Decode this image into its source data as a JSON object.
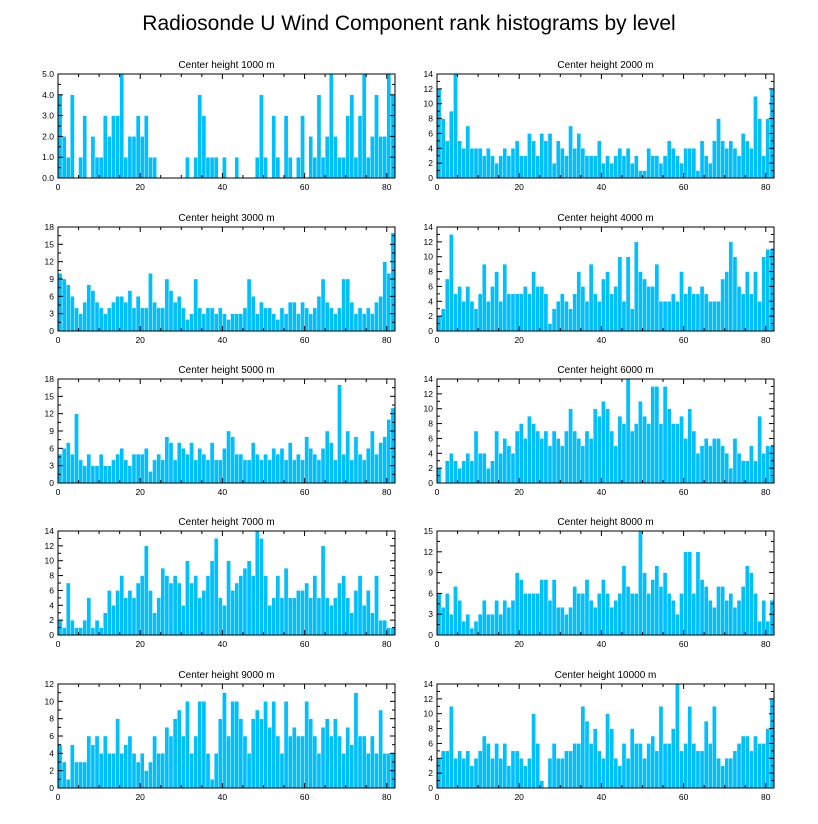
{
  "title": "Radiosonde U Wind Component rank histograms by level",
  "bar_color": "#00bfff",
  "chart_data": [
    {
      "type": "bar",
      "title": "Center height 1000 m",
      "xlim": [
        0,
        82
      ],
      "ylim": [
        0,
        5
      ],
      "x_ticks": [
        0,
        20,
        40,
        60,
        80
      ],
      "y_ticks": [
        0,
        1,
        2,
        3,
        4,
        5
      ],
      "y_tick_labels": [
        "0.0",
        "1.0",
        "2.0",
        "3.0",
        "4.0",
        "5.0"
      ],
      "values": [
        4,
        2,
        1,
        4,
        0,
        1,
        3,
        0,
        2,
        1,
        1,
        3,
        2,
        3,
        3,
        5,
        1,
        2,
        2,
        3,
        2,
        3,
        1,
        1,
        0,
        0,
        0,
        0,
        0,
        0,
        0,
        1,
        0,
        1,
        4,
        3,
        1,
        1,
        1,
        0,
        1,
        0,
        0,
        1,
        0,
        0,
        0,
        0,
        1,
        4,
        1,
        0,
        3,
        1,
        0,
        3,
        1,
        0,
        1,
        3,
        0,
        2,
        1,
        4,
        1,
        2,
        5,
        2,
        1,
        1,
        3,
        4,
        1,
        3,
        5,
        1,
        2,
        4,
        2,
        2,
        5,
        4
      ]
    },
    {
      "type": "bar",
      "title": "Center height 2000 m",
      "xlim": [
        0,
        82
      ],
      "ylim": [
        0,
        14
      ],
      "x_ticks": [
        0,
        20,
        40,
        60,
        80
      ],
      "y_ticks": [
        0,
        2,
        4,
        6,
        8,
        10,
        12,
        14
      ],
      "y_tick_labels": [
        "0",
        "2",
        "4",
        "6",
        "8",
        "10",
        "12",
        "14"
      ],
      "values": [
        12,
        8,
        5,
        9,
        14,
        5,
        4,
        7,
        4,
        4,
        4,
        3,
        4,
        3,
        2,
        3,
        4,
        3,
        4,
        5,
        3,
        3,
        6,
        5,
        3,
        6,
        5,
        6,
        2,
        5,
        4,
        3,
        7,
        4,
        6,
        4,
        3,
        3,
        3,
        5,
        2,
        3,
        2,
        3,
        4,
        3,
        4,
        2,
        3,
        1,
        1,
        4,
        3,
        3,
        2,
        3,
        5,
        4,
        3,
        2,
        4,
        4,
        4,
        1,
        5,
        3,
        2,
        5,
        8,
        5,
        4,
        5,
        4,
        3,
        6,
        5,
        4,
        11,
        8,
        3,
        8,
        12
      ]
    },
    {
      "type": "bar",
      "title": "Center height 3000 m",
      "xlim": [
        0,
        82
      ],
      "ylim": [
        0,
        18
      ],
      "x_ticks": [
        0,
        20,
        40,
        60,
        80
      ],
      "y_ticks": [
        0,
        3,
        6,
        9,
        12,
        15,
        18
      ],
      "y_tick_labels": [
        "0",
        "3",
        "6",
        "9",
        "12",
        "15",
        "18"
      ],
      "values": [
        10,
        9,
        8,
        6,
        4,
        3,
        5,
        8,
        7,
        5,
        4,
        3,
        4,
        5,
        6,
        6,
        5,
        7,
        4,
        6,
        4,
        4,
        10,
        5,
        4,
        4,
        9,
        7,
        5,
        6,
        4,
        2,
        3,
        9,
        4,
        3,
        4,
        4,
        3,
        4,
        3,
        2,
        3,
        3,
        3,
        4,
        9,
        6,
        3,
        5,
        4,
        4,
        3,
        2,
        4,
        3,
        5,
        5,
        3,
        5,
        4,
        3,
        4,
        6,
        9,
        5,
        4,
        3,
        4,
        9,
        9,
        5,
        3,
        4,
        3,
        4,
        3,
        5,
        6,
        12,
        10,
        17
      ]
    },
    {
      "type": "bar",
      "title": "Center height 4000 m",
      "xlim": [
        0,
        82
      ],
      "ylim": [
        0,
        14
      ],
      "x_ticks": [
        0,
        20,
        40,
        60,
        80
      ],
      "y_ticks": [
        0,
        2,
        4,
        6,
        8,
        10,
        12,
        14
      ],
      "y_tick_labels": [
        "0",
        "2",
        "4",
        "6",
        "8",
        "10",
        "12",
        "14"
      ],
      "values": [
        2,
        3,
        7,
        13,
        5,
        6,
        4,
        6,
        4,
        3,
        5,
        9,
        4,
        6,
        8,
        4,
        9,
        5,
        5,
        5,
        5,
        6,
        5,
        8,
        6,
        6,
        5,
        1,
        3,
        4,
        5,
        4,
        3,
        5,
        8,
        6,
        4,
        9,
        5,
        4,
        7,
        8,
        5,
        6,
        10,
        4,
        10,
        3,
        12,
        8,
        7,
        6,
        6,
        9,
        4,
        4,
        4,
        5,
        4,
        8,
        5,
        6,
        5,
        5,
        6,
        5,
        4,
        4,
        4,
        7,
        8,
        12,
        10,
        6,
        5,
        8,
        5,
        8,
        4,
        10,
        11,
        11
      ]
    },
    {
      "type": "bar",
      "title": "Center height 5000 m",
      "xlim": [
        0,
        82
      ],
      "ylim": [
        0,
        18
      ],
      "x_ticks": [
        0,
        20,
        40,
        60,
        80
      ],
      "y_ticks": [
        0,
        3,
        6,
        9,
        12,
        15,
        18
      ],
      "y_tick_labels": [
        "0",
        "3",
        "6",
        "9",
        "12",
        "15",
        "18"
      ],
      "values": [
        5,
        6,
        7,
        5,
        12,
        4,
        3,
        5,
        3,
        3,
        5,
        3,
        3,
        4,
        5,
        6,
        4,
        3,
        5,
        5,
        5,
        6,
        2,
        4,
        5,
        4,
        8,
        7,
        4,
        7,
        6,
        5,
        7,
        4,
        6,
        5,
        4,
        7,
        4,
        4,
        6,
        9,
        8,
        5,
        5,
        4,
        4,
        7,
        5,
        4,
        5,
        4,
        6,
        5,
        6,
        4,
        7,
        4,
        5,
        4,
        8,
        6,
        5,
        4,
        6,
        9,
        7,
        4,
        17,
        5,
        9,
        4,
        8,
        5,
        4,
        6,
        9,
        5,
        7,
        8,
        11,
        13
      ]
    },
    {
      "type": "bar",
      "title": "Center height 6000 m",
      "xlim": [
        0,
        82
      ],
      "ylim": [
        0,
        14
      ],
      "x_ticks": [
        0,
        20,
        40,
        60,
        80
      ],
      "y_ticks": [
        0,
        2,
        4,
        6,
        8,
        10,
        12,
        14
      ],
      "y_tick_labels": [
        "0",
        "2",
        "4",
        "6",
        "8",
        "10",
        "12",
        "14"
      ],
      "values": [
        2,
        0,
        3,
        4,
        3,
        2,
        3,
        4,
        3,
        7,
        4,
        4,
        2,
        3,
        7,
        4,
        6,
        5,
        4,
        7,
        8,
        6,
        9,
        8,
        7,
        6,
        7,
        5,
        7,
        6,
        5,
        7,
        10,
        7,
        6,
        5,
        7,
        6,
        10,
        9,
        11,
        10,
        7,
        5,
        9,
        8,
        14,
        7,
        8,
        11,
        9,
        8,
        13,
        13,
        8,
        13,
        10,
        8,
        8,
        9,
        6,
        10,
        7,
        4,
        5,
        6,
        5,
        6,
        6,
        5,
        4,
        2,
        6,
        4,
        3,
        3,
        5,
        3,
        9,
        4,
        5,
        5
      ]
    },
    {
      "type": "bar",
      "title": "Center height 7000 m",
      "xlim": [
        0,
        82
      ],
      "ylim": [
        0,
        14
      ],
      "x_ticks": [
        0,
        20,
        40,
        60,
        80
      ],
      "y_ticks": [
        0,
        2,
        4,
        6,
        8,
        10,
        12,
        14
      ],
      "y_tick_labels": [
        "0",
        "2",
        "4",
        "6",
        "8",
        "10",
        "12",
        "14"
      ],
      "values": [
        2,
        1,
        7,
        2,
        1,
        1,
        2,
        5,
        1,
        2,
        1,
        3,
        6,
        4,
        6,
        8,
        5,
        6,
        5,
        7,
        8,
        12,
        6,
        3,
        5,
        9,
        8,
        7,
        8,
        7,
        4,
        10,
        7,
        8,
        5,
        6,
        8,
        10,
        13,
        5,
        4,
        10,
        6,
        7,
        8,
        9,
        10,
        8,
        14,
        13,
        8,
        4,
        5,
        8,
        5,
        9,
        5,
        5,
        6,
        6,
        7,
        5,
        8,
        5,
        12,
        5,
        4,
        5,
        7,
        8,
        5,
        3,
        6,
        8,
        4,
        6,
        3,
        8,
        2,
        2,
        1,
        1
      ]
    },
    {
      "type": "bar",
      "title": "Center height 8000 m",
      "xlim": [
        0,
        82
      ],
      "ylim": [
        0,
        15
      ],
      "x_ticks": [
        0,
        20,
        40,
        60,
        80
      ],
      "y_ticks": [
        0,
        3,
        6,
        9,
        12,
        15
      ],
      "y_tick_labels": [
        "0",
        "3",
        "6",
        "9",
        "12",
        "15"
      ],
      "values": [
        6,
        4,
        6,
        3,
        7,
        5,
        2,
        3,
        1,
        2,
        3,
        5,
        3,
        3,
        5,
        3,
        5,
        4,
        5,
        9,
        8,
        6,
        6,
        6,
        6,
        8,
        8,
        5,
        8,
        4,
        4,
        3,
        4,
        7,
        6,
        6,
        8,
        5,
        4,
        6,
        8,
        6,
        4,
        5,
        6,
        10,
        7,
        6,
        6,
        15,
        9,
        6,
        8,
        10,
        7,
        9,
        6,
        5,
        3,
        6,
        12,
        12,
        6,
        12,
        8,
        7,
        5,
        4,
        7,
        7,
        5,
        6,
        4,
        5,
        7,
        10,
        9,
        6,
        2,
        5,
        2,
        5
      ]
    },
    {
      "type": "bar",
      "title": "Center height 9000 m",
      "xlim": [
        0,
        82
      ],
      "ylim": [
        0,
        12
      ],
      "x_ticks": [
        0,
        20,
        40,
        60,
        80
      ],
      "y_ticks": [
        0,
        2,
        4,
        6,
        8,
        10,
        12
      ],
      "y_tick_labels": [
        "0",
        "2",
        "4",
        "6",
        "8",
        "10",
        "12"
      ],
      "values": [
        5,
        3,
        1,
        5,
        3,
        3,
        3,
        6,
        5,
        6,
        4,
        6,
        4,
        4,
        8,
        4,
        5,
        6,
        4,
        3,
        4,
        2,
        3,
        6,
        4,
        4,
        7,
        6,
        8,
        9,
        6,
        10,
        4,
        6,
        10,
        10,
        4,
        1,
        4,
        8,
        11,
        6,
        10,
        10,
        8,
        6,
        4,
        8,
        9,
        8,
        10,
        7,
        10,
        6,
        4,
        10,
        6,
        7,
        6,
        6,
        10,
        8,
        6,
        4,
        7,
        8,
        6,
        8,
        6,
        4,
        7,
        5,
        11,
        6,
        6,
        4,
        6,
        4,
        9,
        4,
        4,
        4
      ]
    },
    {
      "type": "bar",
      "title": "Center height 10000 m",
      "xlim": [
        0,
        82
      ],
      "ylim": [
        0,
        14
      ],
      "x_ticks": [
        0,
        20,
        40,
        60,
        80
      ],
      "y_ticks": [
        0,
        2,
        4,
        6,
        8,
        10,
        12,
        14
      ],
      "y_tick_labels": [
        "0",
        "2",
        "4",
        "6",
        "8",
        "10",
        "12",
        "14"
      ],
      "values": [
        4,
        5,
        5,
        11,
        4,
        5,
        4,
        5,
        3,
        4,
        5,
        7,
        6,
        4,
        6,
        4,
        6,
        3,
        5,
        5,
        4,
        3,
        4,
        10,
        6,
        1,
        0,
        4,
        6,
        4,
        4,
        5,
        5,
        6,
        6,
        11,
        9,
        6,
        8,
        5,
        4,
        10,
        8,
        4,
        3,
        6,
        4,
        8,
        6,
        6,
        4,
        6,
        7,
        5,
        11,
        6,
        6,
        8,
        14,
        5,
        6,
        11,
        6,
        5,
        5,
        9,
        6,
        11,
        4,
        3,
        4,
        4,
        5,
        6,
        7,
        7,
        5,
        7,
        6,
        6,
        8,
        12
      ]
    }
  ]
}
